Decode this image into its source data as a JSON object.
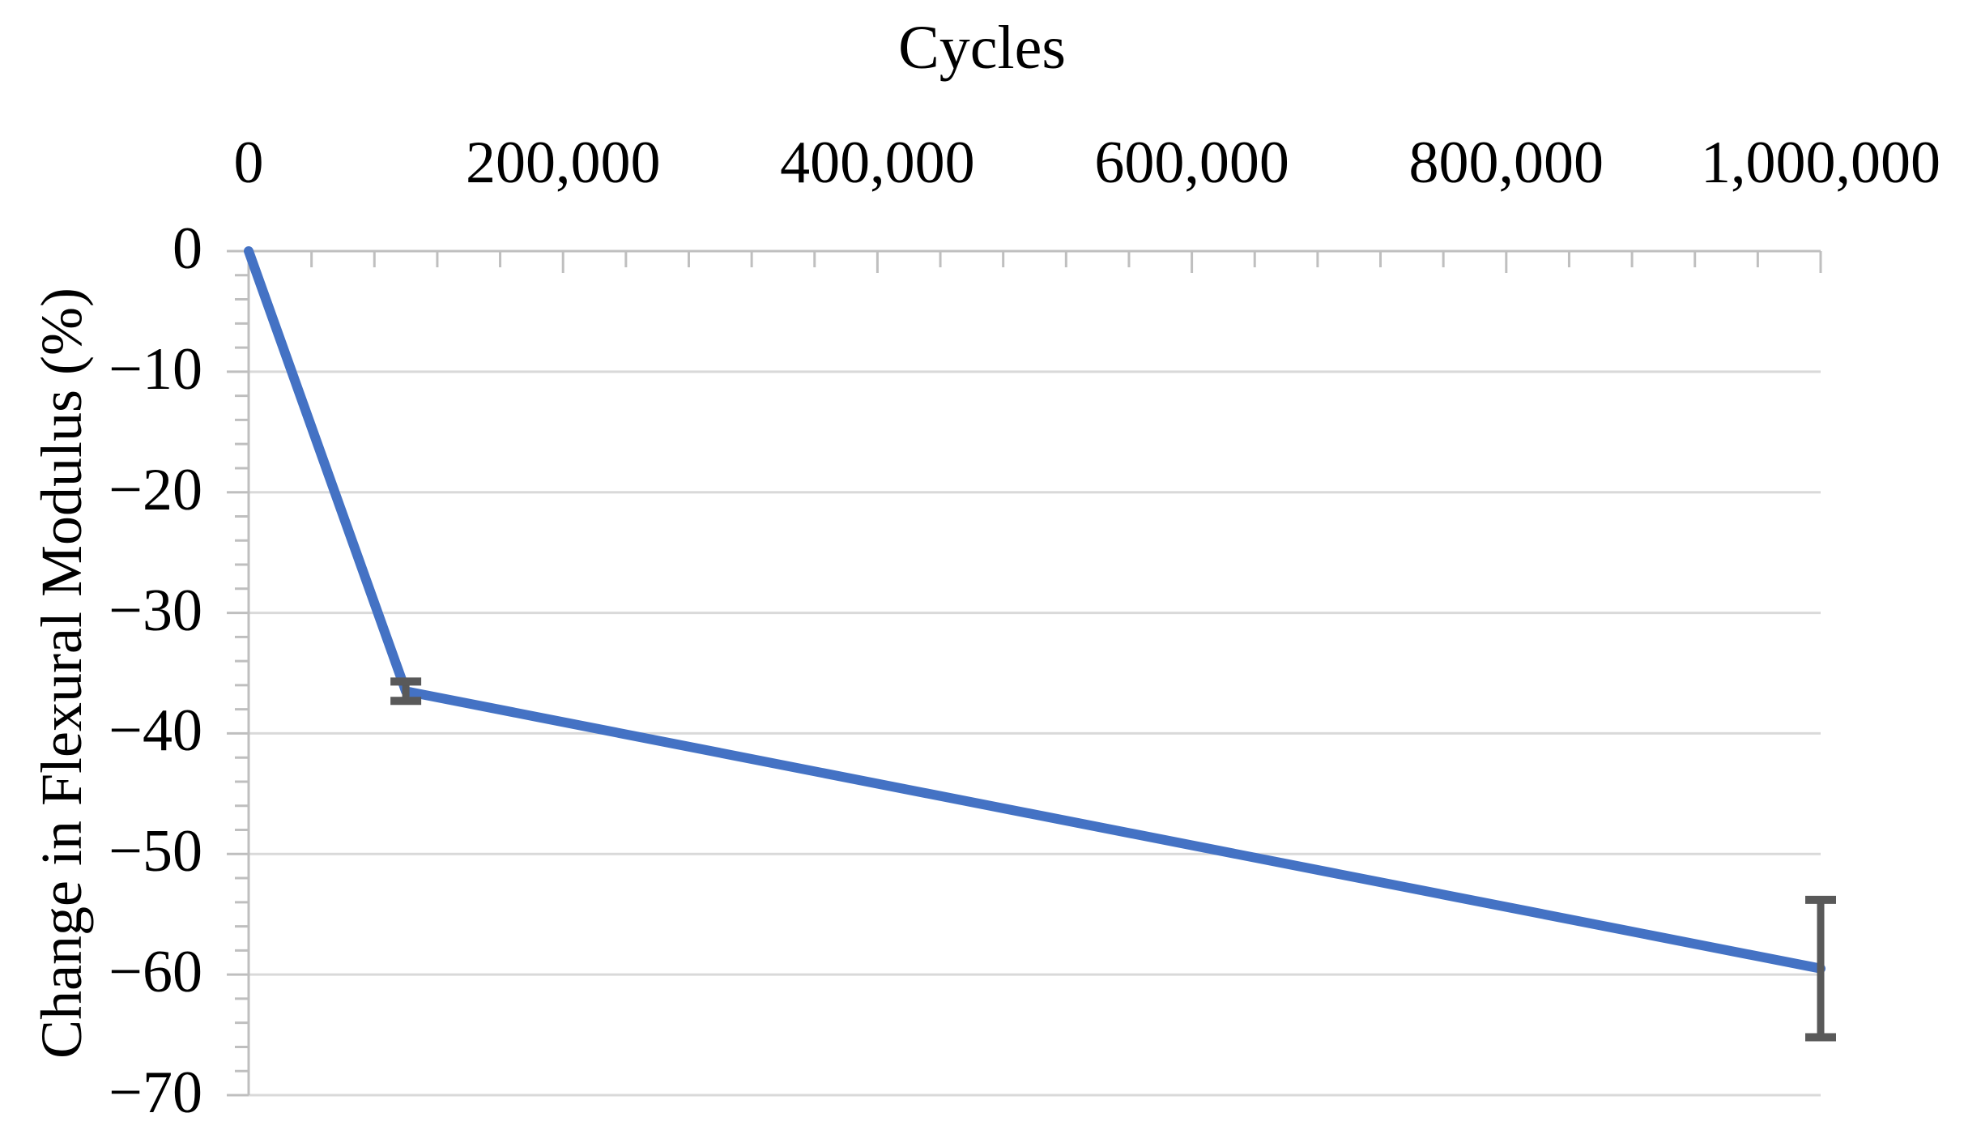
{
  "chart_data": {
    "type": "line",
    "title": "",
    "xlabel": "Cycles",
    "ylabel": "Change in Flexural Modulus (%)",
    "legend": "none",
    "grid": "horizontal-major",
    "x_axis": {
      "position": "top",
      "min": 0,
      "max": 1000000,
      "minor_unit": 40000,
      "major_ticks": [
        {
          "value": 0,
          "label": "0"
        },
        {
          "value": 200000,
          "label": "200,000"
        },
        {
          "value": 400000,
          "label": "400,000"
        },
        {
          "value": 600000,
          "label": "600,000"
        },
        {
          "value": 800000,
          "label": "800,000"
        },
        {
          "value": 1000000,
          "label": "1,000,000"
        }
      ]
    },
    "y_axis": {
      "position": "left",
      "min": -70,
      "max": 0,
      "minor_unit": 2,
      "major_ticks": [
        {
          "value": 0,
          "label": "0"
        },
        {
          "value": -10,
          "label": "−10"
        },
        {
          "value": -20,
          "label": "−20"
        },
        {
          "value": -30,
          "label": "−30"
        },
        {
          "value": -40,
          "label": "−40"
        },
        {
          "value": -50,
          "label": "−50"
        },
        {
          "value": -60,
          "label": "−60"
        },
        {
          "value": -70,
          "label": "−70"
        }
      ]
    },
    "series": [
      {
        "name": "Change in Flexural Modulus",
        "color": "#4472C4",
        "points": [
          {
            "x": 0,
            "y": 0,
            "err": 0
          },
          {
            "x": 100000,
            "y": -36.5,
            "err": 0.8
          },
          {
            "x": 1000000,
            "y": -59.5,
            "err": 5.7
          }
        ]
      }
    ],
    "error_bar_color": "#595959"
  },
  "colors": {
    "background": "#FFFFFF",
    "gridline": "#D9D9D9",
    "axis": "#BFBFBF",
    "text": "#000000",
    "series_blue": "#4472C4",
    "error_bar": "#595959"
  }
}
